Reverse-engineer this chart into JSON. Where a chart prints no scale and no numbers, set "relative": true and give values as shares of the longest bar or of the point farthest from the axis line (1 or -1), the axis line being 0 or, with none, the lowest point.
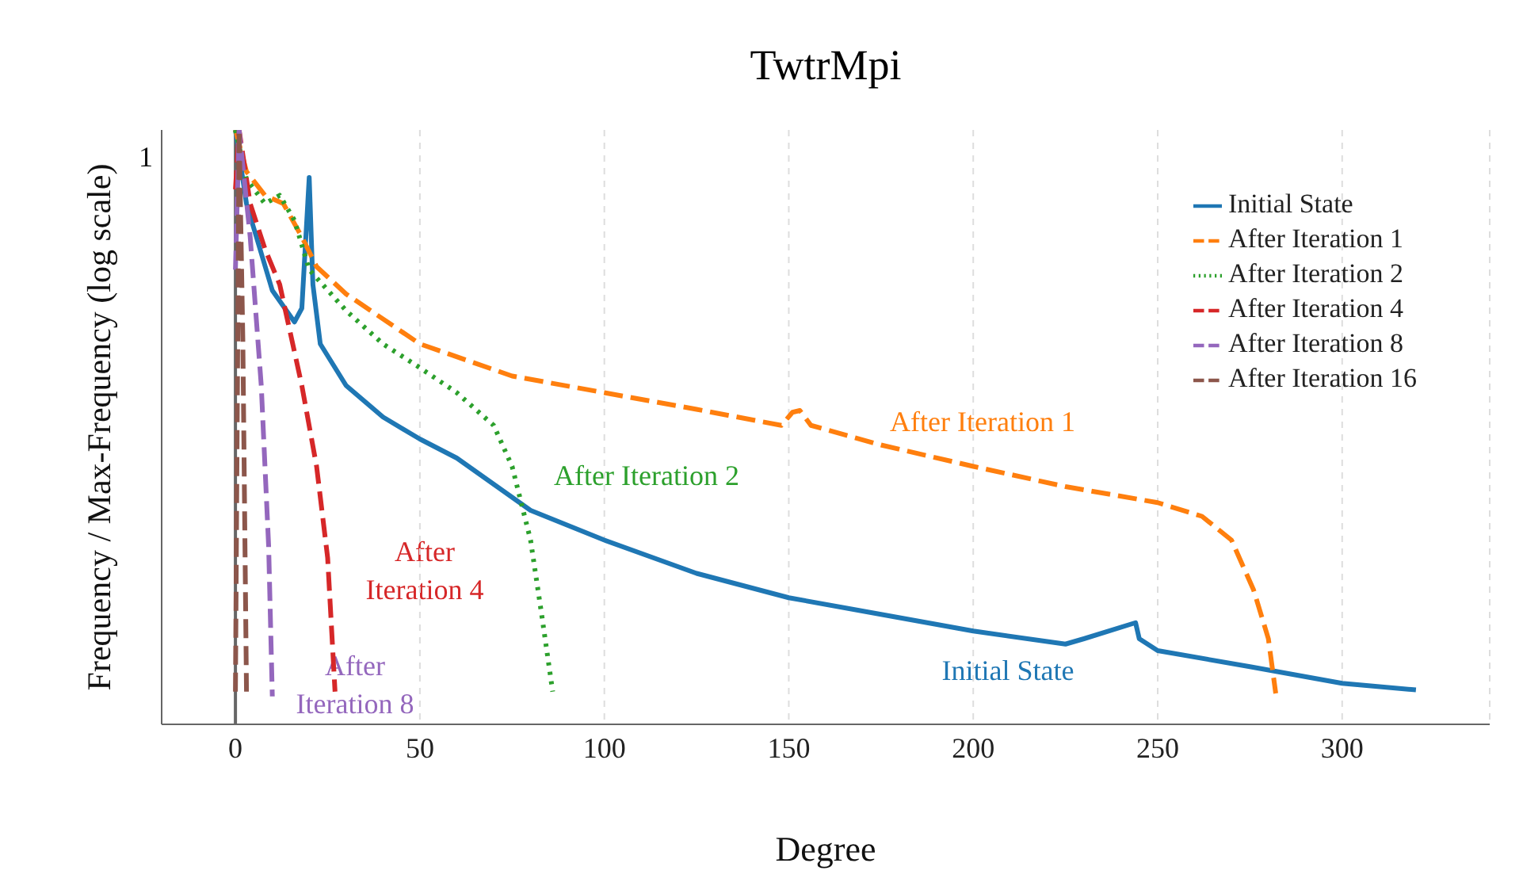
{
  "chart_data": {
    "type": "line",
    "title": "TwtrMpi",
    "xlabel": "Degree",
    "ylabel": "Frequency / Max-Frequency (log scale)",
    "relative": true,
    "xlim": [
      -20,
      340
    ],
    "xticks": [
      0,
      50,
      100,
      150,
      200,
      250,
      300
    ],
    "grid": "x",
    "legend": "top right",
    "marker": "none",
    "ref_lines": [
      {
        "axis": "x",
        "value": 0,
        "color": "#666666"
      }
    ],
    "series": [
      {
        "name": "Initial State",
        "color": "#1f77b4",
        "line_style": "solid",
        "x": [
          0,
          3,
          10,
          16,
          18,
          20,
          21,
          23,
          30,
          40,
          50,
          60,
          80,
          100,
          125,
          150,
          175,
          200,
          225,
          230,
          244,
          245,
          250,
          275,
          300,
          320
        ],
        "values": [
          1,
          0.876,
          0.73,
          0.677,
          0.7,
          0.92,
          0.74,
          0.64,
          0.57,
          0.517,
          0.48,
          0.448,
          0.36,
          0.31,
          0.254,
          0.213,
          0.185,
          0.157,
          0.135,
          0.144,
          0.171,
          0.144,
          0.124,
          0.097,
          0.069,
          0.058
        ]
      },
      {
        "name": "After Iteration 1",
        "color": "#ff7f0e",
        "line_style": "dashed",
        "x": [
          0,
          3,
          8,
          13,
          18,
          22,
          30,
          50,
          75,
          100,
          125,
          148,
          151,
          153,
          156,
          175,
          200,
          225,
          250,
          262,
          270,
          276,
          280,
          282
        ],
        "values": [
          1,
          0.93,
          0.89,
          0.876,
          0.82,
          0.77,
          0.724,
          0.64,
          0.586,
          0.558,
          0.53,
          0.503,
          0.525,
          0.528,
          0.503,
          0.47,
          0.434,
          0.4,
          0.373,
          0.35,
          0.31,
          0.226,
          0.144,
          0.052
        ]
      },
      {
        "name": "After Iteration 2",
        "color": "#2ca02c",
        "line_style": "dotted",
        "x": [
          0,
          3,
          8,
          12,
          16,
          20,
          30,
          40,
          50,
          60,
          70,
          75,
          80,
          83,
          86
        ],
        "values": [
          1,
          0.917,
          0.876,
          0.89,
          0.848,
          0.765,
          0.696,
          0.64,
          0.6,
          0.558,
          0.503,
          0.434,
          0.31,
          0.185,
          0.055
        ]
      },
      {
        "name": "After Iteration 4",
        "color": "#d62728",
        "line_style": "dashed",
        "x": [
          0,
          1,
          4,
          8,
          12,
          18,
          22,
          25,
          27
        ],
        "values": [
          0.9,
          1,
          0.876,
          0.8,
          0.74,
          0.57,
          0.434,
          0.28,
          0.055
        ]
      },
      {
        "name": "After Iteration 8",
        "color": "#9467bd",
        "line_style": "dashed",
        "x": [
          0,
          1,
          4,
          7,
          9,
          10
        ],
        "values": [
          0.765,
          1,
          0.82,
          0.57,
          0.3,
          0.047
        ]
      },
      {
        "name": "After Iteration 16",
        "color": "#8c564b",
        "line_style": "dashed",
        "x": [
          0,
          1,
          2,
          3
        ],
        "values": [
          0.055,
          1,
          0.65,
          0.055
        ]
      }
    ],
    "annotations": [
      "1",
      "Initial State",
      "After Iteration 1",
      "After Iteration 2",
      "After Iteration 4",
      "After Iteration 8"
    ]
  }
}
